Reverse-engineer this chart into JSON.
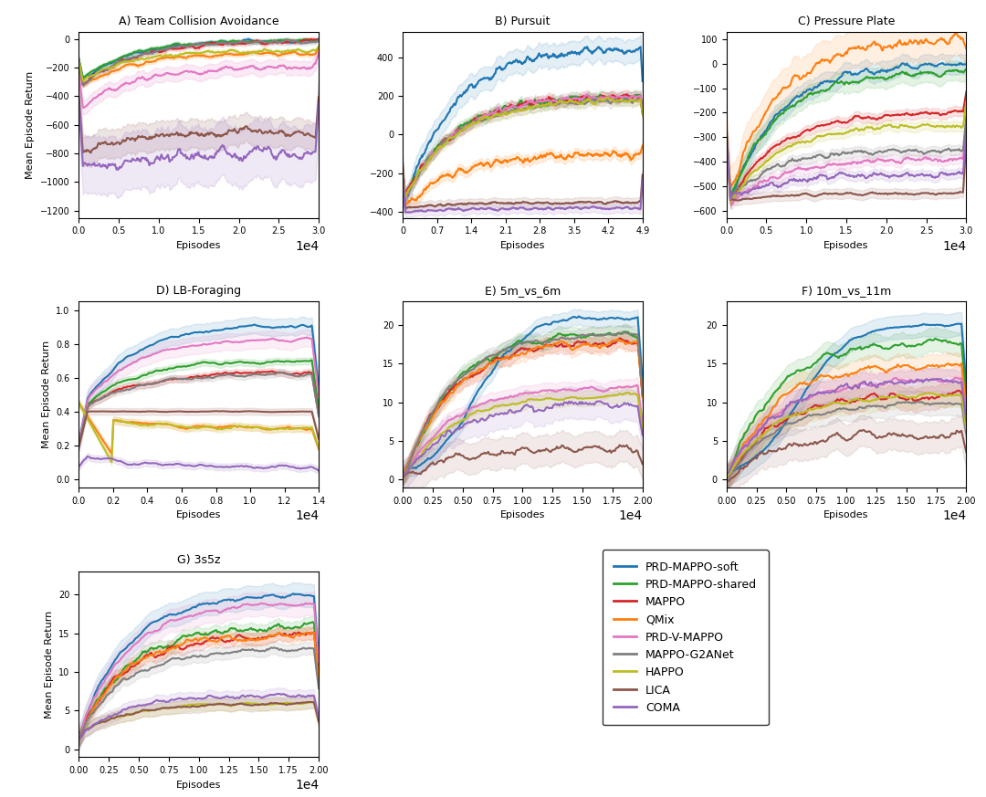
{
  "colors": {
    "PRD-MAPPO-soft": "#1f77b4",
    "PRD-MAPPO-shared": "#2ca02c",
    "MAPPO": "#d62728",
    "QMix": "#ff7f0e",
    "PRD-V-MAPPO": "#e377c2",
    "MAPPO-G2ANet": "#7f7f7f",
    "HAPPO": "#bcbd22",
    "LICA": "#8c564b",
    "COMA": "#9467bd"
  },
  "legend_labels": [
    "PRD-MAPPO-soft",
    "PRD-MAPPO-shared",
    "MAPPO",
    "QMix",
    "PRD-V-MAPPO",
    "MAPPO-G2ANet",
    "HAPPO",
    "LICA",
    "COMA"
  ],
  "subplot_titles": [
    "A) Team Collision Avoidance",
    "B) Pursuit",
    "C) Pressure Plate",
    "D) LB-Foraging",
    "E) 5m_vs_6m",
    "F) 10m_vs_11m",
    "G) 3s5z"
  ],
  "xlabel": "Episodes",
  "ylabel": "Mean Episode Return"
}
